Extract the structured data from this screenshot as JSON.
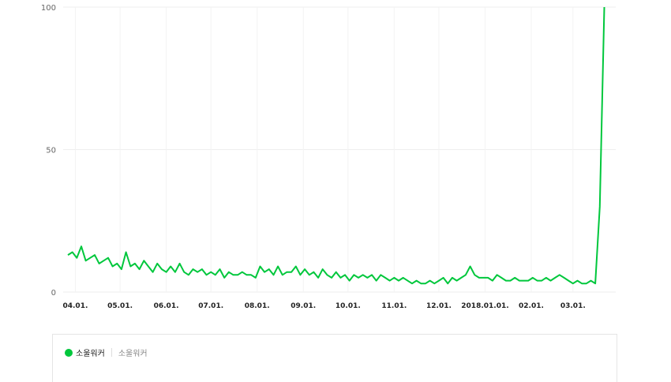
{
  "chart_data": {
    "type": "line",
    "title": "",
    "xlabel": "",
    "ylabel": "",
    "ylim": [
      0,
      100
    ],
    "yticks": [
      "0",
      "50",
      "100"
    ],
    "xticks": [
      {
        "date": "2017-04-01",
        "label": "04.01."
      },
      {
        "date": "2017-05-01",
        "label": "05.01."
      },
      {
        "date": "2017-06-01",
        "label": "06.01."
      },
      {
        "date": "2017-07-01",
        "label": "07.01."
      },
      {
        "date": "2017-08-01",
        "label": "08.01."
      },
      {
        "date": "2017-09-01",
        "label": "09.01."
      },
      {
        "date": "2017-10-01",
        "label": "10.01."
      },
      {
        "date": "2017-11-01",
        "label": "11.01."
      },
      {
        "date": "2017-12-01",
        "label": "12.01."
      },
      {
        "date": "2018-01-01",
        "label": "2018.01.01."
      },
      {
        "date": "2018-02-01",
        "label": "02.01."
      },
      {
        "date": "2018-03-01",
        "label": "03.01."
      }
    ],
    "x_range": [
      "2017-03-27",
      "2018-03-26"
    ],
    "grid": true,
    "series": [
      {
        "name": "소울워커",
        "color": "#00c73c",
        "start": "2017-03-27",
        "step_days": 3,
        "values": [
          13,
          14,
          12,
          16,
          11,
          12,
          13,
          10,
          11,
          12,
          9,
          10,
          8,
          14,
          9,
          10,
          8,
          11,
          9,
          7,
          10,
          8,
          7,
          9,
          7,
          10,
          7,
          6,
          8,
          7,
          8,
          6,
          7,
          6,
          8,
          5,
          7,
          6,
          6,
          7,
          6,
          6,
          5,
          9,
          7,
          8,
          6,
          9,
          6,
          7,
          7,
          9,
          6,
          8,
          6,
          7,
          5,
          8,
          6,
          5,
          7,
          5,
          6,
          4,
          6,
          5,
          6,
          5,
          6,
          4,
          6,
          5,
          4,
          5,
          4,
          5,
          4,
          3,
          4,
          3,
          3,
          4,
          3,
          4,
          5,
          3,
          5,
          4,
          5,
          6,
          9,
          6,
          5,
          5,
          5,
          4,
          6,
          5,
          4,
          4,
          5,
          4,
          4,
          4,
          5,
          4,
          4,
          5,
          4,
          5,
          6,
          5,
          4,
          3,
          4,
          3,
          3,
          4,
          3,
          30,
          100
        ]
      }
    ]
  },
  "legend": {
    "series_label": "소울워커",
    "keyword_label": "소울워커",
    "color": "#00c73c"
  }
}
